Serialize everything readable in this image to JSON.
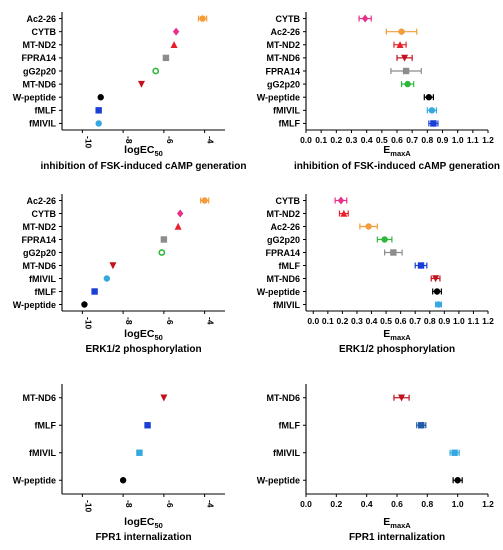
{
  "figure": {
    "panels": [
      {
        "id": "p1",
        "xlabel_main": "logEC",
        "xlabel_sub": "50",
        "title": "inhibition of FSK-induced cAMP generation"
      },
      {
        "id": "p2",
        "xlabel_main": "E",
        "xlabel_sub": "maxA",
        "title": "inhibition of FSK-induced cAMP generation"
      },
      {
        "id": "p3",
        "xlabel_main": "logEC",
        "xlabel_sub": "50",
        "title": "ERK1/2 phosphorylation"
      },
      {
        "id": "p4",
        "xlabel_main": "E",
        "xlabel_sub": "maxA",
        "title": "ERK1/2 phosphorylation"
      },
      {
        "id": "p5",
        "xlabel_main": "logEC",
        "xlabel_sub": "50",
        "title": "FPR1 internalization"
      },
      {
        "id": "p6",
        "xlabel_main": "E",
        "xlabel_sub": "maxA",
        "title": "FPR1 internalization"
      }
    ]
  },
  "chart_data": [
    {
      "type": "scatter",
      "xlim": [
        -11,
        -3
      ],
      "x_ticks": [
        "-10",
        "-8",
        "-6",
        "-4"
      ],
      "x_ticks_rotated": true,
      "categories": [
        "Ac2-26",
        "CYTB",
        "MT-ND2",
        "FPRA14",
        "gG2p20",
        "MT-ND6",
        "W-peptide",
        "fMLF",
        "fMIVIL"
      ],
      "values": [
        -4.1,
        -5.4,
        -5.5,
        -5.9,
        -6.4,
        -7.1,
        -9.1,
        -9.2,
        -9.2
      ],
      "errors": [
        0.2,
        0,
        0,
        0,
        0,
        0,
        0,
        0,
        0
      ],
      "colors": [
        "#f39c3b",
        "#e8308a",
        "#e8202a",
        "#8c8c8c",
        "#2db83d",
        "#c3121e",
        "#000000",
        "#1a3fd6",
        "#35a8e0"
      ],
      "markers": [
        "circle",
        "diamond",
        "triangle",
        "square",
        "circle-open",
        "tri-down",
        "circle",
        "square",
        "circle"
      ]
    },
    {
      "type": "scatter",
      "xlim": [
        0,
        1.2
      ],
      "x_ticks": [
        "0.0",
        "0.1",
        "0.2",
        "0.3",
        "0.4",
        "0.5",
        "0.6",
        "0.7",
        "0.8",
        "0.9",
        "1.0",
        "1.1",
        "1.2"
      ],
      "categories": [
        "CYTB",
        "Ac2-26",
        "MT-ND2",
        "MT-ND6",
        "FPRA14",
        "gG2p20",
        "W-peptide",
        "fMIVIL",
        "fMLF"
      ],
      "values": [
        0.39,
        0.63,
        0.62,
        0.65,
        0.66,
        0.67,
        0.81,
        0.83,
        0.84
      ],
      "errors": [
        0.04,
        0.1,
        0.04,
        0.05,
        0.1,
        0.04,
        0.03,
        0.03,
        0.03
      ],
      "colors": [
        "#e8308a",
        "#f39c3b",
        "#e8202a",
        "#c3121e",
        "#8c8c8c",
        "#2db83d",
        "#000000",
        "#35a8e0",
        "#1a3fd6"
      ],
      "markers": [
        "diamond",
        "circle",
        "triangle",
        "tri-down",
        "square",
        "circle",
        "circle",
        "circle",
        "square"
      ]
    },
    {
      "type": "scatter",
      "xlim": [
        -11,
        -3
      ],
      "x_ticks": [
        "-10",
        "-8",
        "-6",
        "-4"
      ],
      "x_ticks_rotated": true,
      "categories": [
        "Ac2-26",
        "CYTB",
        "MT-ND2",
        "FPRA14",
        "gG2p20",
        "MT-ND6",
        "fMIVIL",
        "fMLF",
        "W-peptide"
      ],
      "values": [
        -4.0,
        -5.2,
        -5.3,
        -6.0,
        -6.1,
        -8.5,
        -8.8,
        -9.4,
        -9.9
      ],
      "errors": [
        0.2,
        0,
        0,
        0,
        0,
        0,
        0,
        0,
        0
      ],
      "colors": [
        "#f39c3b",
        "#e8308a",
        "#e8202a",
        "#8c8c8c",
        "#2db83d",
        "#c3121e",
        "#35a8e0",
        "#1a3fd6",
        "#000000"
      ],
      "markers": [
        "circle",
        "diamond",
        "triangle",
        "square",
        "circle-open",
        "tri-down",
        "circle",
        "square",
        "circle"
      ]
    },
    {
      "type": "scatter",
      "xlim": [
        -0.05,
        1.2
      ],
      "x_ticks": [
        "0.0",
        "0.1",
        "0.2",
        "0.3",
        "0.4",
        "0.5",
        "0.6",
        "0.7",
        "0.8",
        "0.9",
        "1.0",
        "1.1",
        "1.2"
      ],
      "categories": [
        "CYTB",
        "MT-ND2",
        "Ac2-26",
        "gG2p20",
        "FPRA14",
        "fMLF",
        "MT-ND6",
        "W-peptide",
        "fMIVIL"
      ],
      "values": [
        0.19,
        0.21,
        0.38,
        0.49,
        0.55,
        0.74,
        0.84,
        0.85,
        0.86
      ],
      "errors": [
        0.04,
        0.03,
        0.06,
        0.05,
        0.06,
        0.04,
        0.03,
        0.03,
        0.02
      ],
      "colors": [
        "#e8308a",
        "#e8202a",
        "#f39c3b",
        "#2db83d",
        "#8c8c8c",
        "#1a3fd6",
        "#c3121e",
        "#000000",
        "#35a8e0"
      ],
      "markers": [
        "diamond",
        "triangle",
        "circle",
        "circle",
        "square",
        "square",
        "tri-down",
        "circle",
        "circle"
      ]
    },
    {
      "type": "scatter",
      "xlim": [
        -11,
        -3
      ],
      "x_ticks": [
        "-10",
        "-8",
        "-6",
        "-4"
      ],
      "x_ticks_rotated": true,
      "categories": [
        "MT-ND6",
        "fMLF",
        "fMIVIL",
        "W-peptide"
      ],
      "values": [
        -6.0,
        -6.8,
        -7.2,
        -8.0
      ],
      "errors": [
        0,
        0,
        0,
        0
      ],
      "colors": [
        "#c3121e",
        "#1a3fd6",
        "#35a8e0",
        "#000000"
      ],
      "markers": [
        "tri-down",
        "square",
        "square",
        "circle"
      ]
    },
    {
      "type": "scatter",
      "xlim": [
        0,
        1.2
      ],
      "x_ticks": [
        "0.0",
        "0.2",
        "0.4",
        "0.6",
        "0.8",
        "1.0",
        "1.2"
      ],
      "categories": [
        "MT-ND6",
        "fMLF",
        "fMIVIL",
        "W-peptide"
      ],
      "values": [
        0.63,
        0.76,
        0.98,
        1.0
      ],
      "errors": [
        0.05,
        0.03,
        0.03,
        0.03
      ],
      "colors": [
        "#c3121e",
        "#1f5aa8",
        "#35a8e0",
        "#000000"
      ],
      "markers": [
        "tri-down",
        "square",
        "square",
        "circle"
      ]
    }
  ]
}
